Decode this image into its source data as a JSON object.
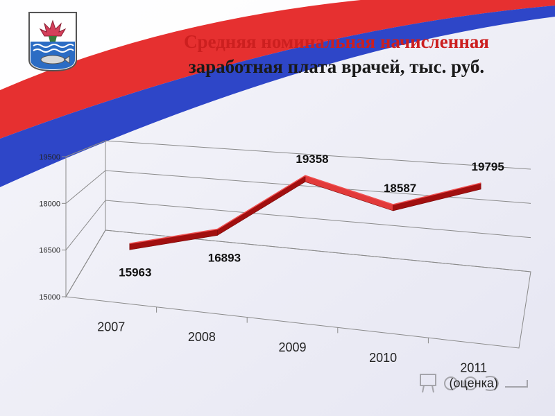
{
  "title": {
    "line1": "Средняя номинальная начисленная",
    "line2": "заработная плата врачей, тыс. руб."
  },
  "colors": {
    "accent_red": "#cc1f1f",
    "stripe_blue": "#2e46c8",
    "stripe_red": "#e63030",
    "line_dark": "#a10f0f",
    "line_light": "#e23a3a"
  },
  "emblem": {
    "icon": "city-coat-of-arms-icon"
  },
  "watermark": {
    "icon": "presentation-watermark-icon"
  },
  "chart_data": {
    "type": "line",
    "style": "3d-ribbon",
    "categories": [
      "2007",
      "2008",
      "2009",
      "2010",
      "2011"
    ],
    "category_sublabels": [
      "",
      "",
      "",
      "",
      "(оценка)"
    ],
    "values": [
      15963,
      16893,
      19358,
      18587,
      19795
    ],
    "data_labels": [
      "15963",
      "16893",
      "19358",
      "18587",
      "19795"
    ],
    "y_ticks": [
      15000,
      16500,
      18000,
      19500
    ],
    "y_tick_labels": [
      "15000",
      "16500",
      "18000",
      "19500"
    ],
    "ylim": [
      15000,
      19500
    ],
    "grid": true,
    "legend": "none",
    "xlabel": "",
    "ylabel": ""
  }
}
